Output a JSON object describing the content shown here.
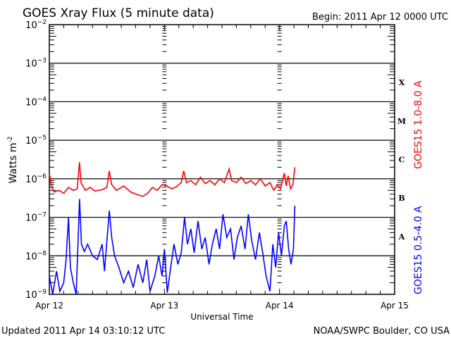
{
  "chart_data": {
    "type": "line",
    "title": "GOES Xray Flux (5 minute data)",
    "begin_label": "Begin:  2011 Apr 12 0000 UTC",
    "xlabel": "Universal Time",
    "ylabel": "Watts m",
    "ylabel_sup": "-2",
    "yscale": "log",
    "ylim": [
      1e-09,
      0.01
    ],
    "xlim_hours": [
      0,
      72
    ],
    "x_tick_labels": [
      {
        "hour": 0,
        "label": "Apr 12"
      },
      {
        "hour": 24,
        "label": "Apr 13"
      },
      {
        "hour": 48,
        "label": "Apr 14"
      },
      {
        "hour": 72,
        "label": "Apr 15"
      }
    ],
    "y_tick_exponents": [
      -2,
      -3,
      -4,
      -5,
      -6,
      -7,
      -8,
      -9
    ],
    "flare_classes": [
      {
        "label": "X",
        "exp": -3.5
      },
      {
        "label": "M",
        "exp": -4.5
      },
      {
        "label": "C",
        "exp": -5.5
      },
      {
        "label": "B",
        "exp": -6.5
      },
      {
        "label": "A",
        "exp": -7.5
      }
    ],
    "series": [
      {
        "name": "GOES15 1.0-8.0 A",
        "color": "#ff0000",
        "points": [
          [
            0,
            1.4e-06
          ],
          [
            0.5,
            6e-07
          ],
          [
            1,
            4.5e-07
          ],
          [
            2,
            5e-07
          ],
          [
            3,
            4.2e-07
          ],
          [
            4,
            6e-07
          ],
          [
            5,
            5e-07
          ],
          [
            5.8,
            5.5e-07
          ],
          [
            6.3,
            2.7e-06
          ],
          [
            6.6,
            8e-07
          ],
          [
            7.5,
            5e-07
          ],
          [
            8.5,
            6e-07
          ],
          [
            9.5,
            4.8e-07
          ],
          [
            11,
            5.2e-07
          ],
          [
            12,
            6e-07
          ],
          [
            12.5,
            1.6e-06
          ],
          [
            13,
            7e-07
          ],
          [
            14,
            5e-07
          ],
          [
            15.5,
            6.5e-07
          ],
          [
            17,
            4.5e-07
          ],
          [
            18.5,
            3.8e-07
          ],
          [
            19.5,
            3.5e-07
          ],
          [
            20.5,
            4.2e-07
          ],
          [
            21.5,
            6e-07
          ],
          [
            22.5,
            5e-07
          ],
          [
            23.5,
            7e-07
          ],
          [
            24.5,
            6.5e-07
          ],
          [
            25.5,
            5.5e-07
          ],
          [
            26.5,
            6.2e-07
          ],
          [
            27.5,
            8e-07
          ],
          [
            28,
            1.6e-06
          ],
          [
            28.6,
            8e-07
          ],
          [
            29.5,
            9e-07
          ],
          [
            30.5,
            7e-07
          ],
          [
            31.5,
            1.1e-06
          ],
          [
            32.5,
            7.5e-07
          ],
          [
            33.5,
            9e-07
          ],
          [
            34.5,
            7e-07
          ],
          [
            35.5,
            1e-06
          ],
          [
            36.5,
            8e-07
          ],
          [
            37.5,
            1.8e-06
          ],
          [
            38,
            9e-07
          ],
          [
            39,
            8e-07
          ],
          [
            40,
            1.1e-06
          ],
          [
            41,
            7.5e-07
          ],
          [
            42,
            9e-07
          ],
          [
            43,
            7e-07
          ],
          [
            44,
            1e-06
          ],
          [
            45,
            6.5e-07
          ],
          [
            46,
            8e-07
          ],
          [
            46.8,
            5e-07
          ],
          [
            47.5,
            7e-07
          ],
          [
            48.2,
            5.5e-07
          ],
          [
            49,
            1.4e-06
          ],
          [
            49.4,
            6.5e-07
          ],
          [
            49.8,
            1.2e-06
          ],
          [
            50.3,
            5.5e-07
          ],
          [
            50.8,
            7e-07
          ],
          [
            51.2,
            2e-06
          ]
        ]
      },
      {
        "name": "GOES15 0.5-4.0 A",
        "color": "#0000ff",
        "points": [
          [
            0,
            3e-09
          ],
          [
            0.7,
            1e-09
          ],
          [
            1.5,
            4e-09
          ],
          [
            2.2,
            1.2e-09
          ],
          [
            3,
            2e-09
          ],
          [
            3.5,
            8e-09
          ],
          [
            4,
            1e-07
          ],
          [
            4.4,
            5e-09
          ],
          [
            5,
            2e-09
          ],
          [
            5.6,
            1e-09
          ],
          [
            6.3,
            3e-07
          ],
          [
            6.7,
            2e-08
          ],
          [
            7.3,
            1.3e-08
          ],
          [
            8,
            2e-08
          ],
          [
            9,
            1e-08
          ],
          [
            10,
            8e-09
          ],
          [
            11,
            2e-08
          ],
          [
            11.5,
            4e-09
          ],
          [
            12.5,
            1.5e-07
          ],
          [
            13,
            3e-08
          ],
          [
            13.6,
            1e-08
          ],
          [
            14.5,
            5e-09
          ],
          [
            15.5,
            2e-09
          ],
          [
            16.5,
            4e-09
          ],
          [
            17.5,
            1.5e-09
          ],
          [
            18.5,
            6e-09
          ],
          [
            19.5,
            2e-09
          ],
          [
            20.3,
            8e-09
          ],
          [
            21,
            1.2e-09
          ],
          [
            22,
            3e-09
          ],
          [
            22.8,
            1e-08
          ],
          [
            23.5,
            3e-09
          ],
          [
            24,
            1.5e-08
          ],
          [
            24.6,
            1.1e-09
          ],
          [
            25.3,
            5e-09
          ],
          [
            26,
            2e-08
          ],
          [
            26.8,
            6e-09
          ],
          [
            27.5,
            1.2e-08
          ],
          [
            28.2,
            1e-07
          ],
          [
            28.8,
            2e-08
          ],
          [
            29.5,
            5e-08
          ],
          [
            30.2,
            1.2e-08
          ],
          [
            31,
            8e-08
          ],
          [
            31.8,
            1.5e-08
          ],
          [
            32.5,
            3e-08
          ],
          [
            33.3,
            6e-09
          ],
          [
            34,
            2e-08
          ],
          [
            34.8,
            5e-08
          ],
          [
            35.5,
            1.5e-08
          ],
          [
            36.2,
            1.2e-07
          ],
          [
            37,
            3e-08
          ],
          [
            37.8,
            5e-08
          ],
          [
            38.5,
            8e-09
          ],
          [
            39.2,
            3e-08
          ],
          [
            40,
            6e-08
          ],
          [
            40.8,
            1.5e-08
          ],
          [
            41.5,
            1.2e-07
          ],
          [
            42.2,
            2.5e-08
          ],
          [
            43,
            8e-09
          ],
          [
            43.8,
            4e-08
          ],
          [
            44.5,
            1.2e-08
          ],
          [
            45.2,
            3e-09
          ],
          [
            46,
            1.2e-09
          ],
          [
            46.6,
            2e-08
          ],
          [
            47.2,
            5e-09
          ],
          [
            47.8,
            4e-08
          ],
          [
            48.4,
            1e-08
          ],
          [
            49,
            6e-08
          ],
          [
            49.4,
            8e-08
          ],
          [
            49.9,
            1.5e-08
          ],
          [
            50.4,
            6e-09
          ],
          [
            50.9,
            1.5e-08
          ],
          [
            51.2,
            2e-07
          ]
        ]
      }
    ]
  },
  "footer": {
    "updated": "Updated 2011 Apr 14 03:10:12 UTC",
    "credit": "NOAA/SWPC Boulder, CO USA"
  }
}
